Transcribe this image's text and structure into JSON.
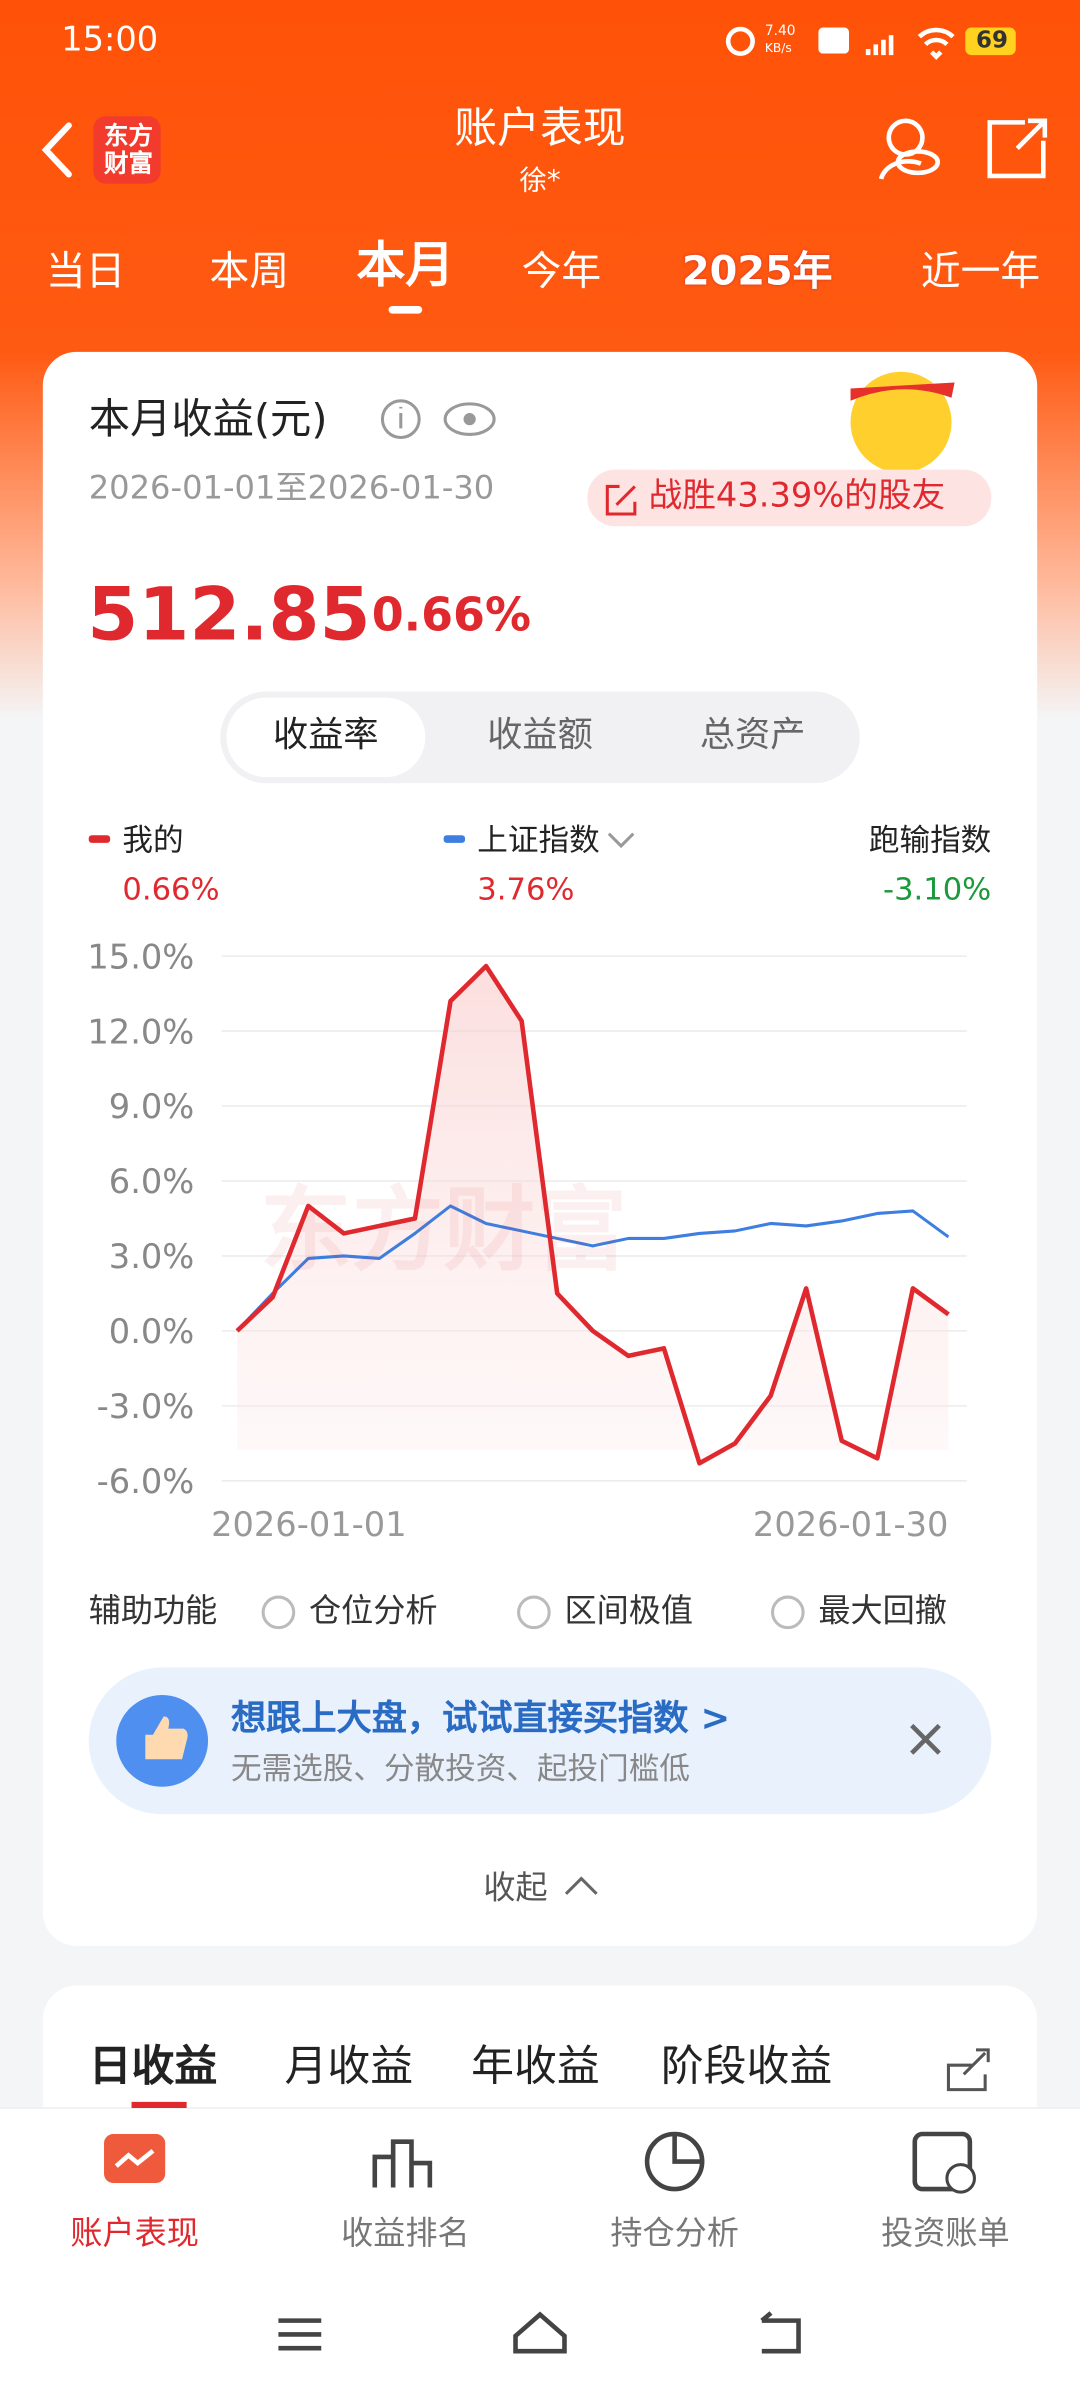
{
  "status": {
    "time": "15:00",
    "speed": "7.40",
    "speed_unit": "KB/s",
    "battery": "69"
  },
  "header": {
    "logo": "东方财富",
    "title": "账户表现",
    "subtitle": "徐*"
  },
  "tabs": {
    "items": [
      "当日",
      "本周",
      "本月",
      "今年",
      "2025年",
      "近一年"
    ]
  },
  "card": {
    "title": "本月收益(元)",
    "date_range": "2026-01-01至2026-01-30",
    "badge": "战胜43.39%的股友",
    "amount": "512.85",
    "percent": "0.66%",
    "segments": [
      "收益率",
      "收益额",
      "总资产"
    ],
    "extra_index": {
      "name": "跑输指数",
      "value": "-3.10%"
    }
  },
  "chart_data": {
    "type": "line",
    "watermark": "东方财富",
    "categories": [
      "2026-01-01",
      null,
      null,
      null,
      null,
      null,
      null,
      null,
      null,
      null,
      null,
      null,
      null,
      null,
      null,
      null,
      null,
      null,
      null,
      null,
      "2026-01-30"
    ],
    "series": [
      {
        "name": "我的",
        "summary": "0.66%",
        "color": "#e0292f",
        "values": [
          0,
          1.35,
          5.0,
          3.9,
          4.2,
          4.5,
          13.2,
          14.6,
          12.4,
          1.5,
          0,
          -1.0,
          -0.7,
          -5.3,
          -4.5,
          -2.6,
          1.7,
          -4.4,
          -5.1,
          1.7,
          0.66
        ]
      },
      {
        "name": "上证指数",
        "summary": "3.76%",
        "color": "#3d7ee0",
        "values": [
          0,
          1.5,
          2.9,
          3.0,
          2.9,
          3.9,
          5.0,
          4.3,
          4.0,
          3.7,
          3.4,
          3.7,
          3.7,
          3.9,
          4.0,
          4.3,
          4.2,
          4.4,
          4.7,
          4.8,
          3.76
        ]
      }
    ],
    "ylim": [
      -6,
      15
    ],
    "yticks": [
      {
        "value": 15,
        "label": "15.0%"
      },
      {
        "value": 12,
        "label": "12.0%"
      },
      {
        "value": 9,
        "label": "9.0%"
      },
      {
        "value": 6,
        "label": "6.0%"
      },
      {
        "value": 3,
        "label": "3.0%"
      },
      {
        "value": 0,
        "label": "0.0%"
      },
      {
        "value": -3,
        "label": "-3.0%"
      },
      {
        "value": -6,
        "label": "-6.0%"
      }
    ],
    "grid": true
  },
  "aux": {
    "label": "辅助功能",
    "options": [
      "仓位分析",
      "区间极值",
      "最大回撤"
    ]
  },
  "promo": {
    "title": "想跟上大盘，试试直接买指数 >",
    "subtitle": "无需选股、分散投资、起投门槛低"
  },
  "collapse": "收起",
  "profit_tabs": [
    "日收益",
    "月收益",
    "年收益",
    "阶段收益"
  ],
  "nav": [
    "账户表现",
    "收益排名",
    "持仓分析",
    "投资账单"
  ]
}
